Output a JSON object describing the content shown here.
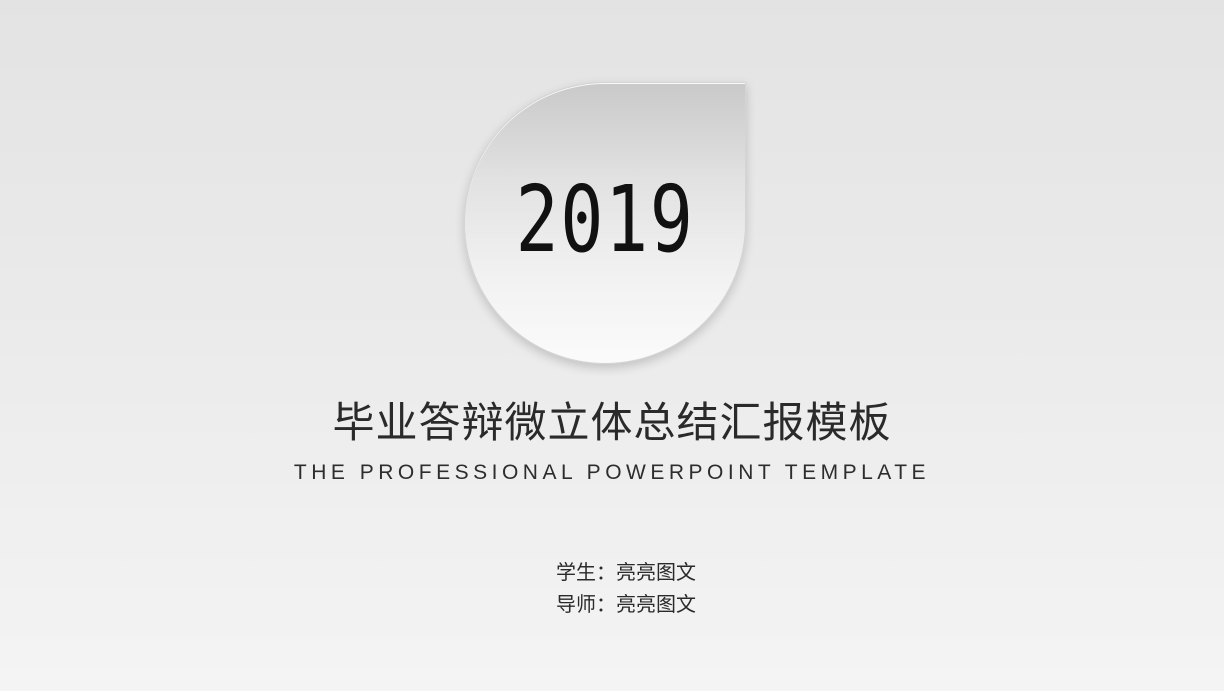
{
  "slide": {
    "year": "2019",
    "title_cn": "毕业答辩微立体总结汇报模板",
    "title_en": "THE PROFESSIONAL POWERPOINT TEMPLATE",
    "student_label": "学生：",
    "student_name": "亮亮图文",
    "advisor_label": "导师：",
    "advisor_name": "亮亮图文"
  },
  "colors": {
    "background_top": "#e3e3e3",
    "background_bottom": "#f4f4f4",
    "text": "#2a2a2a"
  }
}
